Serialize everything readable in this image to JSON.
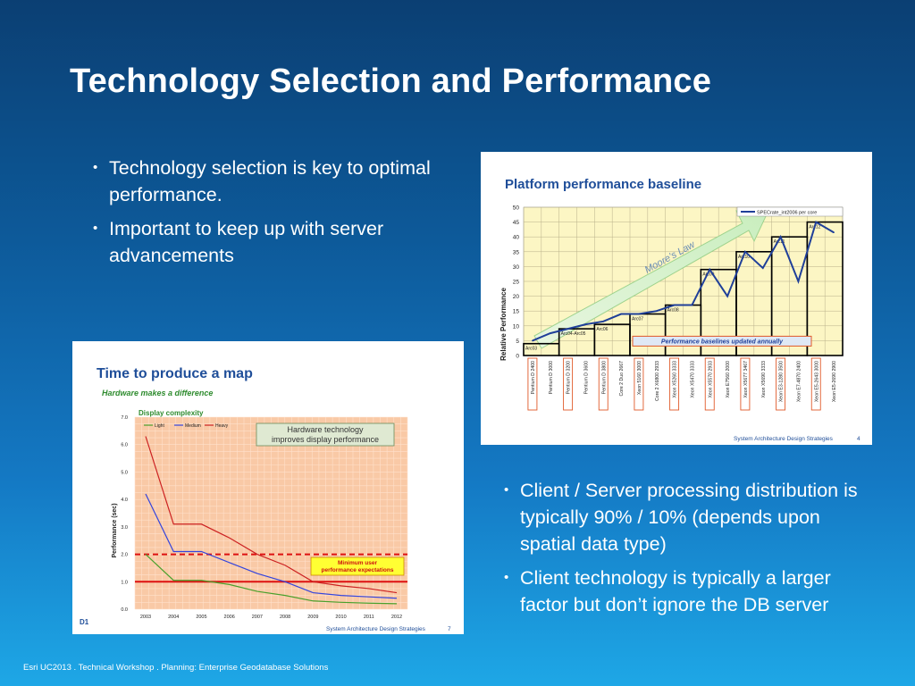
{
  "slide": {
    "title": "Technology Selection and Performance",
    "footer": "Esri UC2013 . Technical Workshop .   Planning:  Enterprise Geodatabase Solutions"
  },
  "bullets_top": [
    "Technology selection is key to optimal performance.",
    "Important to keep up with server advancements"
  ],
  "bullets_bottom": [
    "Client / Server processing distribution is typically 90% / 10% (depends upon spatial data type)",
    "Client technology is typically a larger factor but don’t ignore the DB server"
  ],
  "colors": {
    "title_blue": "#1f4e99",
    "accent_green": "#2e8b2e",
    "grid_yellow": "#fcf6c4",
    "grid_orange": "#f9c9a6"
  },
  "chart_data": [
    {
      "type": "line",
      "title": "Platform performance baseline",
      "ylabel": "Relative Performance",
      "ylim": [
        0,
        50
      ],
      "yticks": [
        0,
        5,
        10,
        15,
        20,
        25,
        30,
        35,
        40,
        45,
        50
      ],
      "grid": true,
      "legend_position": "top-right",
      "categories": [
        "Pentium D 2400",
        "Pentium D 3000",
        "Pentium D 3200",
        "Pentium D 3600",
        "Pentium D 3800",
        "Core 2 Duo 2667",
        "Xeon 5160 3000",
        "Core 2 X6800 2933",
        "Xeon X5260 3333",
        "Xeon X5470 3333",
        "Xeon X5570 2933",
        "Xeon E7560 2000",
        "Xeon X5677 3467",
        "Xeon X5690 3333",
        "Xeon E3-1280 3500",
        "Xeon E7-4870 2400",
        "Xeon E5-2643 3000",
        "Xeon E5-2690 2900"
      ],
      "series": [
        {
          "name": "SPECrate_int2006 per core",
          "values": [
            5,
            7.5,
            9,
            10.5,
            11.5,
            14,
            14,
            15,
            17,
            17,
            29,
            20,
            35,
            29.5,
            40,
            25,
            45,
            41.5
          ]
        }
      ],
      "steps": [
        {
          "label": "Arc03",
          "value": 4
        },
        {
          "label": "Arc04-Arc05",
          "value": 9
        },
        {
          "label": "Arc06",
          "value": 10.5
        },
        {
          "label": "Arc07",
          "value": 14
        },
        {
          "label": "Arc08",
          "value": 17
        },
        {
          "label": "Arc09",
          "value": 29
        },
        {
          "label": "Arc10",
          "value": 35
        },
        {
          "label": "Arc11",
          "value": 40
        },
        {
          "label": "Arc12",
          "value": 45
        }
      ],
      "annotations": {
        "trend": "Moore’s Law",
        "note": "Performance baselines updated annually"
      },
      "footer": "System Architecture Design Strategies",
      "page": "4"
    },
    {
      "type": "line",
      "title": "Time to produce a map",
      "subtitle": "Hardware makes a difference",
      "group_label": "Display  complexity",
      "ylabel": "Performance (sec)",
      "ylim": [
        0,
        7
      ],
      "yticks": [
        "0.0",
        "1.0",
        "2.0",
        "3.0",
        "4.0",
        "5.0",
        "6.0",
        "7.0"
      ],
      "categories": [
        "2003",
        "2004",
        "2005",
        "2006",
        "2007",
        "2008",
        "2009",
        "2010",
        "2011",
        "2012"
      ],
      "series": [
        {
          "name": "Light",
          "color": "#4aa02c",
          "values": [
            2.0,
            1.05,
            1.05,
            0.9,
            0.65,
            0.5,
            0.3,
            0.25,
            0.22,
            0.2
          ]
        },
        {
          "name": "Medium",
          "color": "#3344dd",
          "values": [
            4.2,
            2.1,
            2.1,
            1.7,
            1.3,
            1.0,
            0.6,
            0.5,
            0.45,
            0.4
          ]
        },
        {
          "name": "Heavy",
          "color": "#cc2222",
          "values": [
            6.3,
            3.1,
            3.1,
            2.6,
            2.0,
            1.6,
            1.0,
            0.85,
            0.75,
            0.6
          ]
        }
      ],
      "reference_lines": {
        "dashed": 2.0,
        "solid": 1.0
      },
      "annotations": {
        "callout": "Hardware technology improves display performance",
        "min_label": "Minimum user performance expectations",
        "corner": "D1"
      },
      "footer": "System Architecture Design Strategies",
      "page": "7"
    }
  ]
}
